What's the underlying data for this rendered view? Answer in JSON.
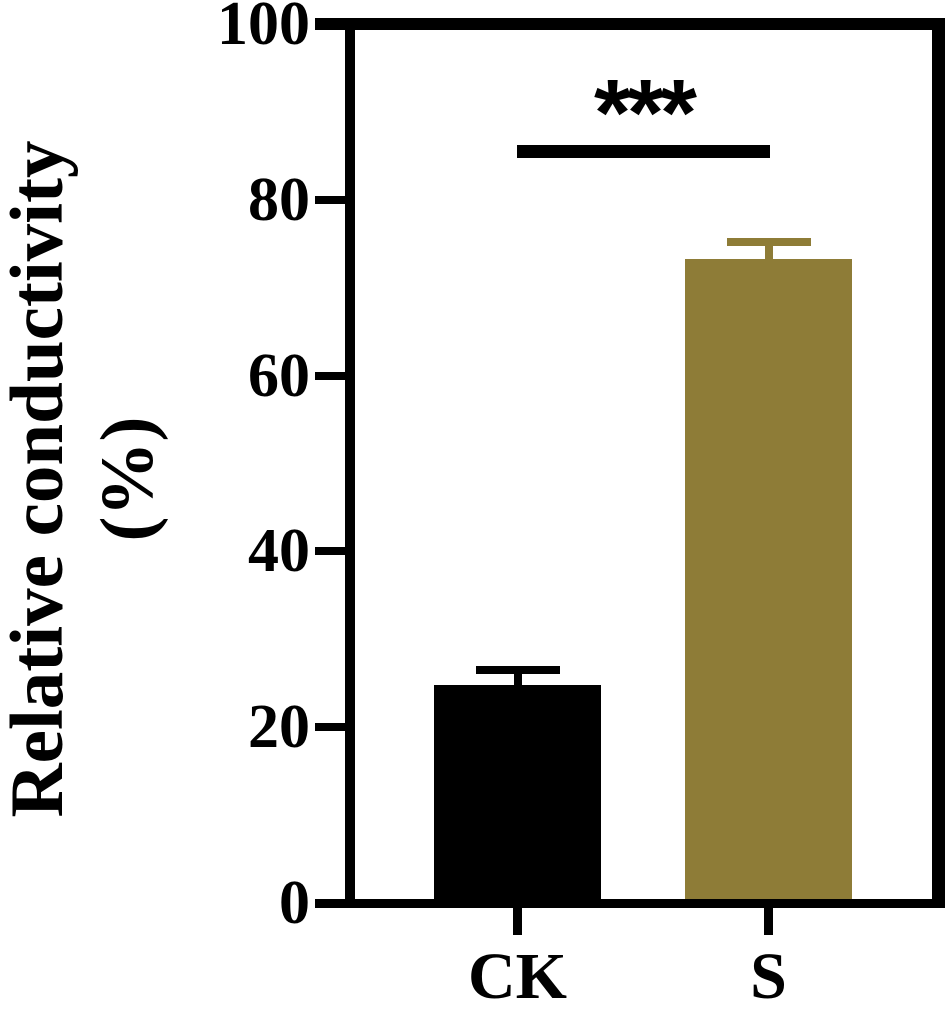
{
  "chart_data": {
    "type": "bar",
    "title": "",
    "categories": [
      "CK",
      "S"
    ],
    "values": [
      24.8,
      73.3
    ],
    "errors": [
      1.7,
      1.9
    ],
    "error_style": "upper-cap",
    "bar_colors": [
      "#000000",
      "#8E7C37"
    ],
    "ylabel_line1": "Relative conductivity",
    "ylabel_line2": "(%)",
    "ylabel": "Relative conductivity (%)",
    "xlabel": "",
    "yticks": [
      100,
      80,
      60,
      40,
      20,
      0
    ],
    "ylim": [
      0,
      100
    ],
    "grid": false,
    "legend": false,
    "frame": "full-box",
    "significance": {
      "label": "***",
      "between": [
        "CK",
        "S"
      ],
      "bar_y_value": 85
    }
  },
  "colors": {
    "axis": "#000000",
    "background": "#FFFFFF",
    "bar_ck": "#000000",
    "bar_s": "#8E7C37"
  }
}
